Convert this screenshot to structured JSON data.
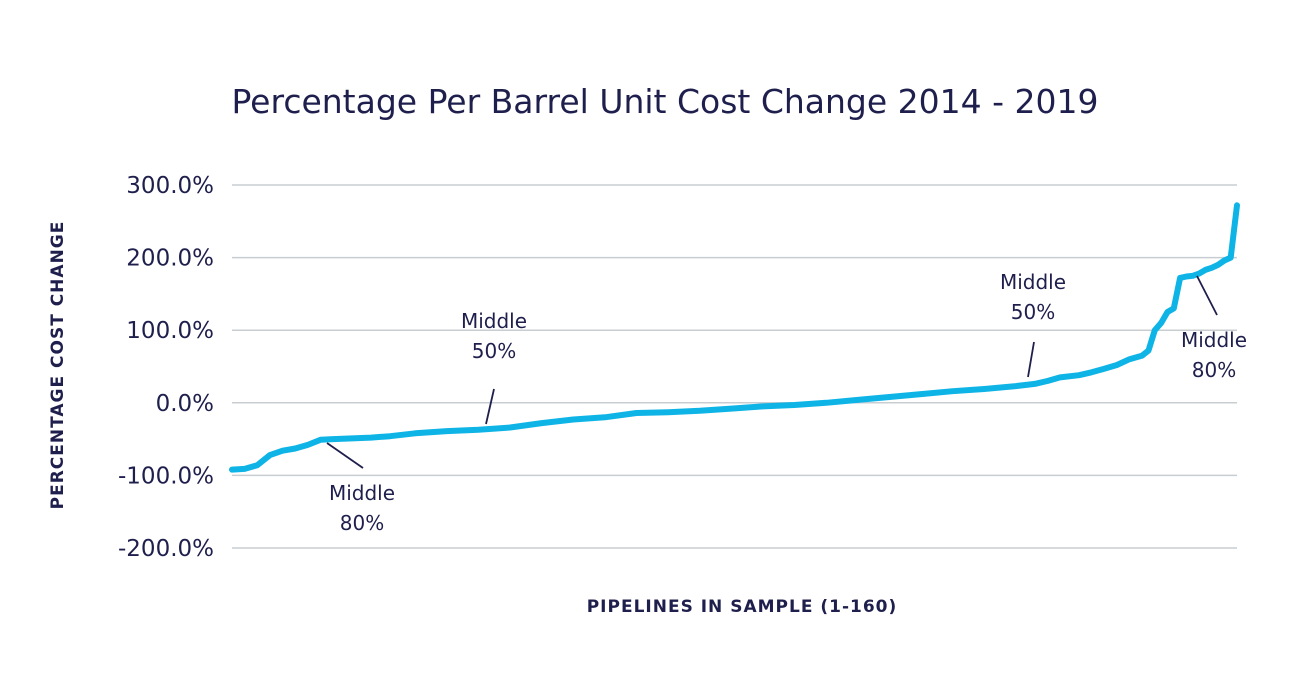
{
  "chart_data": {
    "type": "line",
    "title": "Percentage Per Barrel Unit Cost Change 2014 - 2019",
    "xlabel": "PIPELINES IN SAMPLE (1-160)",
    "ylabel": "PERCENTAGE COST CHANGE",
    "ylim": [
      -200,
      300
    ],
    "xlim": [
      1,
      160
    ],
    "yticks": [
      300,
      200,
      100,
      0,
      -100,
      -200
    ],
    "ytick_labels": [
      "300.0%",
      "200.0%",
      "100.0%",
      "0.0%",
      "-100.0%",
      "-200.0%"
    ],
    "grid": true,
    "legend": "none",
    "colors": {
      "series": "#0fb4e6",
      "text": "#1f1f4d",
      "grid": "#c8cdd2"
    },
    "series": [
      {
        "x": [
          1,
          3,
          5,
          7,
          9,
          11,
          13,
          15,
          17,
          20,
          23,
          26,
          30,
          35,
          40,
          45,
          50,
          55,
          60,
          65,
          70,
          75,
          80,
          85,
          90,
          95,
          100,
          105,
          110,
          115,
          120,
          125,
          128,
          130,
          132,
          135,
          137,
          139,
          141,
          143,
          145,
          146,
          147,
          148,
          149,
          150,
          151,
          152,
          153,
          154,
          155,
          156,
          157,
          158,
          159,
          160
        ],
        "values": [
          -92,
          -91,
          -86,
          -72,
          -66,
          -63,
          -58,
          -51,
          -50,
          -49,
          -48,
          -46,
          -42,
          -39,
          -37,
          -34,
          -28,
          -23,
          -20,
          -14,
          -13,
          -11,
          -8,
          -5,
          -3,
          0,
          4,
          8,
          12,
          16,
          19,
          23,
          26,
          30,
          35,
          38,
          42,
          47,
          52,
          60,
          65,
          72,
          100,
          110,
          125,
          130,
          172,
          174,
          175,
          178,
          183,
          186,
          190,
          196,
          200,
          272
        ]
      }
    ],
    "annotations": [
      {
        "lines": [
          "Middle",
          "80%"
        ],
        "x": 17,
        "y": -50
      },
      {
        "lines": [
          "Middle",
          "50%"
        ],
        "x": 41,
        "y": -36
      },
      {
        "lines": [
          "Middle",
          "50%"
        ],
        "x": 120,
        "y": 29
      },
      {
        "lines": [
          "Middle",
          "80%"
        ],
        "x": 145,
        "y": 183
      }
    ]
  }
}
